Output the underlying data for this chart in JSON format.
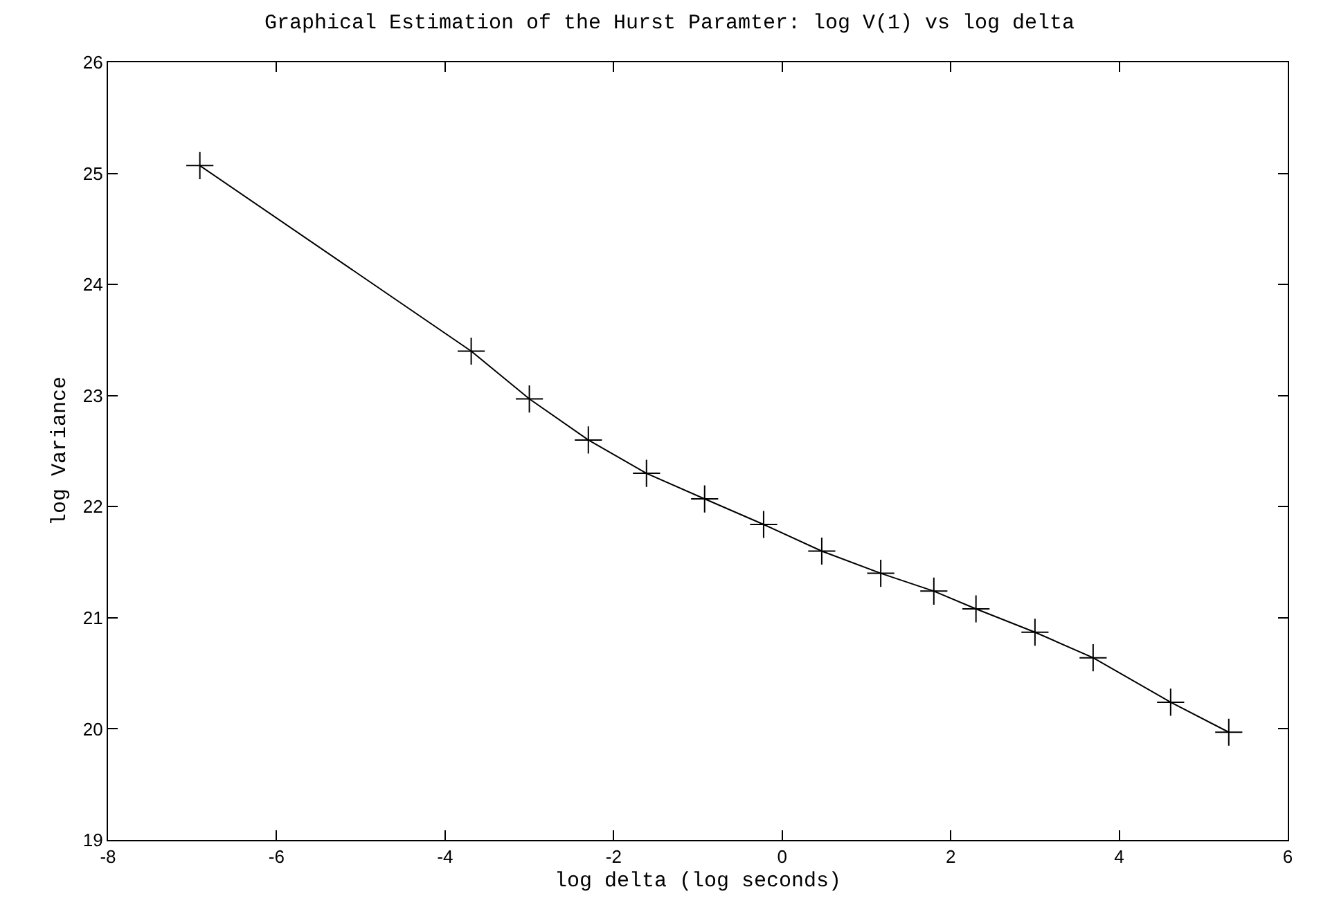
{
  "chart_data": {
    "type": "line",
    "title": "Graphical Estimation of the Hurst Paramter: log V(1) vs log delta",
    "xlabel": "log delta (log seconds)",
    "ylabel": "log Variance",
    "x": [
      -6.91,
      -3.69,
      -3.0,
      -2.3,
      -1.61,
      -0.92,
      -0.22,
      0.47,
      1.17,
      1.8,
      2.3,
      3.0,
      3.69,
      4.61,
      5.3
    ],
    "series": [
      {
        "color": "#000000",
        "values": [
          25.07,
          23.4,
          22.97,
          22.6,
          22.3,
          22.07,
          21.84,
          21.6,
          21.4,
          21.24,
          21.08,
          20.87,
          20.64,
          20.24,
          19.97
        ]
      }
    ],
    "xlim": [
      -8,
      6
    ],
    "xticks": [
      -8,
      -6,
      -4,
      -2,
      0,
      2,
      4,
      6
    ],
    "ylim": [
      19,
      26
    ],
    "yticks": [
      19,
      20,
      21,
      22,
      23,
      24,
      25,
      26
    ],
    "marker": "cross",
    "line_style": "solid"
  }
}
